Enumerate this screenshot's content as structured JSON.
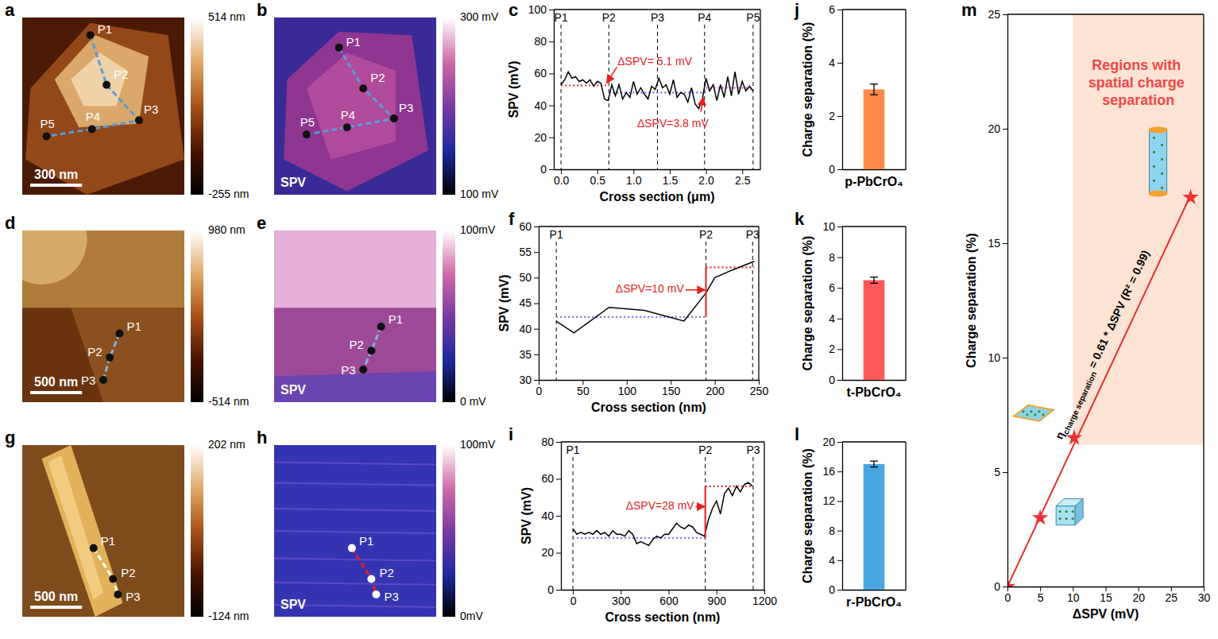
{
  "image_panels": [
    {
      "letter": "a",
      "points": [
        "P1",
        "P2",
        "P3",
        "P4",
        "P5"
      ],
      "scale_bar": "300 nm",
      "colorbar_ticks": [
        {
          "value": 514,
          "label": "514 nm"
        },
        {
          "value": -255,
          "label": "-255 nm"
        }
      ],
      "colors": [
        "#000000",
        "#4a1400",
        "#a8501a",
        "#e2aa6a",
        "#ffffff"
      ]
    },
    {
      "letter": "b",
      "label": "SPV",
      "points": [
        "P1",
        "P2",
        "P3",
        "P4",
        "P5"
      ],
      "colorbar_ticks": [
        {
          "value": 300,
          "label": "300 mV"
        },
        {
          "value": 100,
          "label": "100 mV"
        }
      ],
      "colors": [
        "#000000",
        "#1e2aa0",
        "#7a3aa0",
        "#d06aa8",
        "#ffffff"
      ]
    },
    {
      "letter": "d",
      "points": [
        "P1",
        "P2",
        "P3"
      ],
      "scale_bar": "500 nm",
      "colorbar_ticks": [
        {
          "value": 980,
          "label": "980 nm"
        },
        {
          "value": -514,
          "label": "-514 nm"
        }
      ],
      "colors": [
        "#000000",
        "#4a1400",
        "#a8501a",
        "#e2aa6a",
        "#ffffff"
      ]
    },
    {
      "letter": "e",
      "label": "SPV",
      "points": [
        "P1",
        "P2",
        "P3"
      ],
      "colorbar_ticks": [
        {
          "value": 100,
          "label": "100mV"
        },
        {
          "value": 0,
          "label": "0 mV"
        }
      ],
      "colors": [
        "#000000",
        "#1e2aa0",
        "#7a3aa0",
        "#d06aa8",
        "#ffffff"
      ]
    },
    {
      "letter": "g",
      "points": [
        "P1",
        "P2",
        "P3"
      ],
      "scale_bar": "500 nm",
      "colorbar_ticks": [
        {
          "value": 202,
          "label": "202 nm"
        },
        {
          "value": -124,
          "label": "-124 nm"
        }
      ],
      "colors": [
        "#000000",
        "#4a1400",
        "#a8501a",
        "#e2aa6a",
        "#ffffff"
      ]
    },
    {
      "letter": "h",
      "label": "SPV",
      "points": [
        "P1",
        "P2",
        "P3"
      ],
      "colorbar_ticks": [
        {
          "value": 100,
          "label": "100mV"
        },
        {
          "value": 0,
          "label": "0mV"
        }
      ],
      "colors": [
        "#000000",
        "#1e2aa0",
        "#7a3aa0",
        "#d06aa8",
        "#ffffff"
      ]
    }
  ],
  "chart_data": [
    {
      "letter": "c",
      "type": "line",
      "x_label": "Cross section (μm)",
      "y_label": "SPV (mV)",
      "xlim": [
        -0.1,
        2.75
      ],
      "xticks": [
        {
          "value": 0,
          "label": "0.0"
        },
        0.5,
        {
          "value": 1,
          "label": "1.0"
        },
        1.5,
        {
          "value": 2,
          "label": "2.0"
        },
        2.5
      ],
      "ylim": [
        0,
        100
      ],
      "yticks": [
        0,
        20,
        40,
        60,
        80,
        100
      ],
      "x": [
        0,
        0.05,
        0.1,
        0.15,
        0.2,
        0.25,
        0.3,
        0.35,
        0.4,
        0.45,
        0.5,
        0.55,
        0.6,
        0.65,
        0.7,
        0.75,
        0.8,
        0.85,
        0.9,
        0.95,
        1.0,
        1.05,
        1.1,
        1.15,
        1.2,
        1.25,
        1.3,
        1.35,
        1.4,
        1.45,
        1.5,
        1.55,
        1.6,
        1.65,
        1.7,
        1.75,
        1.8,
        1.85,
        1.9,
        1.95,
        2.0,
        2.05,
        2.1,
        2.15,
        2.2,
        2.25,
        2.3,
        2.35,
        2.4,
        2.45,
        2.5,
        2.55,
        2.6,
        2.65
      ],
      "series": [
        {
          "color": "#000000",
          "values": [
            53,
            56,
            61,
            57,
            58,
            55,
            56,
            54,
            56,
            52,
            55,
            54,
            44,
            43,
            53,
            46,
            53,
            44,
            48,
            45,
            55,
            47,
            51,
            47,
            44,
            52,
            50,
            57,
            51,
            53,
            47,
            56,
            45,
            48,
            47,
            42,
            51,
            41,
            38,
            44,
            57,
            49,
            53,
            43,
            53,
            45,
            58,
            46,
            61,
            47,
            55,
            49,
            52,
            49
          ]
        }
      ],
      "markers": [
        {
          "label": "P1",
          "x": 0
        },
        {
          "label": "P2",
          "x": 0.66
        },
        {
          "label": "P3",
          "x": 1.33
        },
        {
          "label": "P4",
          "x": 1.98
        },
        {
          "label": "P5",
          "x": 2.65
        }
      ],
      "ref_lines": [
        {
          "y": 52.5,
          "x": [
            0,
            0.66
          ],
          "color": "#e83030"
        },
        {
          "y": 48,
          "x": [
            0.66,
            2.0
          ],
          "color": "#5a5ae6"
        },
        {
          "y": 51,
          "x": [
            2.0,
            2.65
          ],
          "color": "#c050c0"
        }
      ],
      "annotations": [
        {
          "text": "ΔSPV= 5.1 mV",
          "color": "#e8201e"
        },
        {
          "text": "ΔSPV=3.8 mV",
          "color": "#e8201e"
        }
      ]
    },
    {
      "letter": "f",
      "type": "line",
      "x_label": "Cross section (nm)",
      "y_label": "SPV (mV)",
      "xlim": [
        0,
        250
      ],
      "xticks": [
        0,
        50,
        100,
        150,
        200,
        250
      ],
      "ylim": [
        30,
        60
      ],
      "yticks": [
        30,
        35,
        40,
        45,
        50,
        55,
        60
      ],
      "x": [
        20,
        40,
        80,
        120,
        165,
        190,
        200,
        220,
        245
      ],
      "series": [
        {
          "color": "#000000",
          "values": [
            41.5,
            39.2,
            44.2,
            43.6,
            41.5,
            47.0,
            50.0,
            51.5,
            53.2
          ]
        }
      ],
      "markers": [
        {
          "label": "P1",
          "x": 20
        },
        {
          "label": "P2",
          "x": 190
        },
        {
          "label": "P3",
          "x": 243
        }
      ],
      "ref_lines": [
        {
          "y": 42.3,
          "x": [
            20,
            190
          ],
          "color": "#7a7af0"
        },
        {
          "y": 52,
          "x": [
            190,
            245
          ],
          "color": "#e83030"
        }
      ],
      "annotations": [
        {
          "text": "ΔSPV=10 mV",
          "color": "#e8201e"
        }
      ]
    },
    {
      "letter": "i",
      "type": "line",
      "x_label": "Cross section (nm)",
      "y_label": "SPV (mV)",
      "xlim": [
        -75,
        1200
      ],
      "xticks": [
        0,
        300,
        600,
        900,
        1200
      ],
      "ylim": [
        0,
        80
      ],
      "yticks": [
        0,
        20,
        40,
        60,
        80
      ],
      "x": [
        0,
        25,
        50,
        75,
        100,
        125,
        150,
        175,
        200,
        225,
        250,
        275,
        300,
        325,
        350,
        375,
        400,
        425,
        450,
        475,
        500,
        525,
        550,
        575,
        600,
        625,
        650,
        675,
        700,
        725,
        750,
        775,
        800,
        825,
        850,
        875,
        900,
        925,
        950,
        975,
        1000,
        1025,
        1050,
        1075,
        1100,
        1125
      ],
      "series": [
        {
          "color": "#000000",
          "values": [
            33,
            30,
            31,
            30,
            31,
            30,
            32,
            30,
            31,
            29,
            32,
            30,
            30,
            29,
            32,
            30,
            25,
            26,
            25,
            24,
            27,
            29,
            28,
            30,
            30,
            33,
            36,
            34,
            33,
            35,
            34,
            31,
            30,
            29,
            38,
            44,
            48,
            41,
            52,
            55,
            51,
            56,
            53,
            57,
            58,
            56
          ]
        }
      ],
      "markers": [
        {
          "label": "P1",
          "x": 0
        },
        {
          "label": "P2",
          "x": 830
        },
        {
          "label": "P3",
          "x": 1130
        }
      ],
      "ref_lines": [
        {
          "y": 28,
          "x": [
            0,
            830
          ],
          "color": "#7a7af0"
        },
        {
          "y": 56,
          "x": [
            830,
            1130
          ],
          "color": "#e83030"
        }
      ],
      "annotations": [
        {
          "text": "ΔSPV=28 mV",
          "color": "#e8201e"
        }
      ]
    },
    {
      "letter": "j",
      "type": "bar",
      "y_label": "Charge separation (%)",
      "categories": [
        "p-PbCrO₄"
      ],
      "values": [
        3.0
      ],
      "errors": [
        0.2
      ],
      "color": "#ff8a4c",
      "ylim": [
        0,
        6
      ],
      "yticks": [
        0,
        2,
        4,
        6
      ]
    },
    {
      "letter": "k",
      "type": "bar",
      "y_label": "Charge separation (%)",
      "categories": [
        "t-PbCrO₄"
      ],
      "values": [
        6.5
      ],
      "errors": [
        0.2
      ],
      "color": "#ff5a5a",
      "ylim": [
        0,
        10
      ],
      "yticks": [
        0,
        2,
        4,
        6,
        8,
        10
      ]
    },
    {
      "letter": "l",
      "type": "bar",
      "y_label": "Charge separation (%)",
      "categories": [
        "r-PbCrO₄"
      ],
      "values": [
        17.0
      ],
      "errors": [
        0.4
      ],
      "color": "#4aa6e0",
      "ylim": [
        0,
        20
      ],
      "yticks": [
        0,
        4,
        8,
        12,
        16,
        20
      ]
    },
    {
      "letter": "m",
      "type": "scatter",
      "x_label": "ΔSPV (mV)",
      "y_label": "Charge separation (%)",
      "xlim": [
        0,
        30
      ],
      "xticks": [
        0,
        5,
        10,
        15,
        20,
        25,
        30
      ],
      "ylim": [
        0,
        25
      ],
      "yticks": [
        0,
        5,
        10,
        15,
        20,
        25
      ],
      "region": {
        "x": [
          10,
          30
        ],
        "y": [
          6.2,
          25
        ],
        "label": "Regions with spatial charge separation",
        "color": "#fde3d4"
      },
      "series": [
        {
          "type": "line",
          "color": "#e8302e",
          "x": [
            0,
            28
          ],
          "values": [
            0,
            17.1
          ]
        },
        {
          "type": "scatter",
          "marker": "star",
          "color": "#ee3030",
          "x": [
            0,
            5,
            10.2,
            28
          ],
          "values": [
            0,
            3,
            6.5,
            17
          ]
        }
      ],
      "equation": [
        {
          "text": "η"
        },
        {
          "text": "charge separation",
          "sub": true
        },
        {
          "text": " = 0.61 * ΔSPV (R² = 0.99)"
        }
      ]
    }
  ]
}
